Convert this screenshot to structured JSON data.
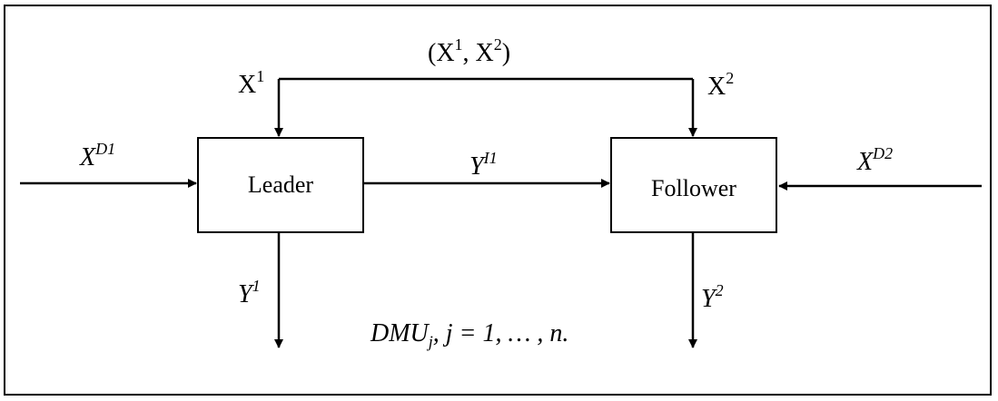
{
  "boxes": {
    "leader": "Leader",
    "follower": "Follower"
  },
  "labels": {
    "top_pair": {
      "open": "(X",
      "sup1": "1",
      "sep": ", X",
      "sup2": "2",
      "close": ")"
    },
    "x1": {
      "base": "X",
      "sup": "1"
    },
    "x2": {
      "base": "X",
      "sup": "2"
    },
    "xd1": {
      "base": "X",
      "sup": "D1"
    },
    "xd2": {
      "base": "X",
      "sup": "D2"
    },
    "yi1": {
      "base": "Y",
      "sup": "I1"
    },
    "y1": {
      "base": "Y",
      "sup": "1"
    },
    "y2": {
      "base": "Y",
      "sup": "2"
    },
    "dmu": {
      "base": "DMU",
      "sub": "j",
      "rest": ", j = 1, … , n."
    }
  }
}
